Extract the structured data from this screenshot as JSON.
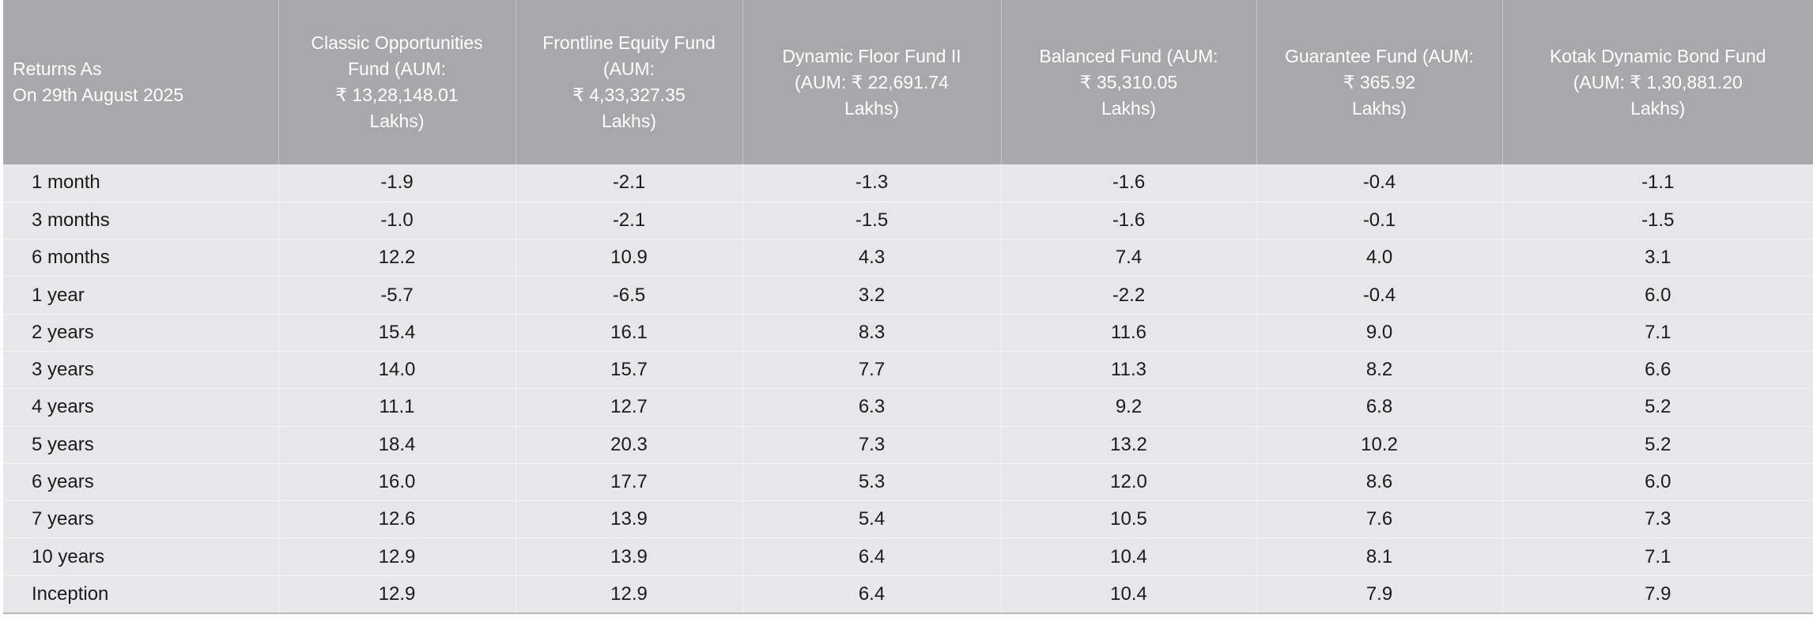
{
  "table": {
    "header_label": "Returns As\nOn 29th August 2025",
    "columns": [
      "Classic Opportunities\nFund (AUM:\n₹ 13,28,148.01\nLakhs)",
      "Frontline Equity Fund\n(AUM:\n₹ 4,33,327.35\nLakhs)",
      "Dynamic Floor Fund II\n(AUM: ₹ 22,691.74\nLakhs)",
      "Balanced Fund (AUM:\n₹ 35,310.05\nLakhs)",
      "Guarantee Fund (AUM:\n₹ 365.92\nLakhs)",
      "Kotak Dynamic Bond Fund\n(AUM: ₹ 1,30,881.20\nLakhs)"
    ],
    "rows": [
      {
        "period": "1 month",
        "values": [
          "-1.9",
          "-2.1",
          "-1.3",
          "-1.6",
          "-0.4",
          "-1.1"
        ]
      },
      {
        "period": "3 months",
        "values": [
          "-1.0",
          "-2.1",
          "-1.5",
          "-1.6",
          "-0.1",
          "-1.5"
        ]
      },
      {
        "period": "6 months",
        "values": [
          "12.2",
          "10.9",
          "4.3",
          "7.4",
          "4.0",
          "3.1"
        ]
      },
      {
        "period": "1 year",
        "values": [
          "-5.7",
          "-6.5",
          "3.2",
          "-2.2",
          "-0.4",
          "6.0"
        ]
      },
      {
        "period": "2 years",
        "values": [
          "15.4",
          "16.1",
          "8.3",
          "11.6",
          "9.0",
          "7.1"
        ]
      },
      {
        "period": "3 years",
        "values": [
          "14.0",
          "15.7",
          "7.7",
          "11.3",
          "8.2",
          "6.6"
        ]
      },
      {
        "period": "4 years",
        "values": [
          "11.1",
          "12.7",
          "6.3",
          "9.2",
          "6.8",
          "5.2"
        ]
      },
      {
        "period": "5 years",
        "values": [
          "18.4",
          "20.3",
          "7.3",
          "13.2",
          "10.2",
          "5.2"
        ]
      },
      {
        "period": "6 years",
        "values": [
          "16.0",
          "17.7",
          "5.3",
          "12.0",
          "8.6",
          "6.0"
        ]
      },
      {
        "period": "7 years",
        "values": [
          "12.6",
          "13.9",
          "5.4",
          "10.5",
          "7.6",
          "7.3"
        ]
      },
      {
        "period": "10 years",
        "values": [
          "12.9",
          "13.9",
          "6.4",
          "10.4",
          "8.1",
          "7.1"
        ]
      },
      {
        "period": "Inception",
        "values": [
          "12.9",
          "12.9",
          "6.4",
          "10.4",
          "7.9",
          "7.9"
        ]
      }
    ]
  }
}
